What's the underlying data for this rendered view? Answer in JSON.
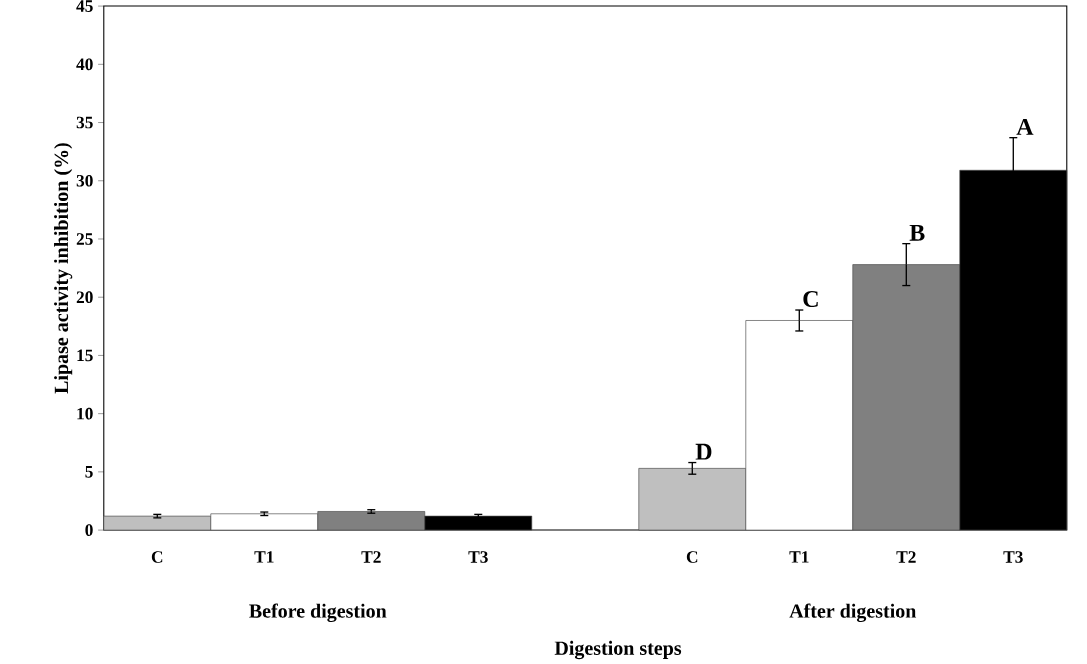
{
  "chart_data": {
    "type": "bar",
    "xlabel": "Digestion steps",
    "ylabel": "Lipase activity inhibition (%)",
    "categories": [
      "C",
      "T1",
      "T2",
      "T3",
      null,
      "C",
      "T1",
      "T2",
      "T3"
    ],
    "values": [
      1.2,
      1.4,
      1.6,
      1.2,
      null,
      5.3,
      18.0,
      22.8,
      30.9
    ],
    "errors": [
      0.15,
      0.15,
      0.15,
      0.15,
      null,
      0.5,
      0.9,
      1.8,
      2.8
    ],
    "colors": [
      "#bfbfbf",
      "#ffffff",
      "#808080",
      "#000000",
      null,
      "#bfbfbf",
      "#ffffff",
      "#808080",
      "#000000"
    ],
    "value_labels": [
      null,
      null,
      null,
      null,
      null,
      "D",
      "C",
      "B",
      "A"
    ],
    "annotations": [
      "Before digestion",
      "After digestion"
    ],
    "ylim": [
      0,
      45
    ],
    "yticks": [
      0,
      5,
      10,
      15,
      20,
      25,
      30,
      35,
      40,
      45
    ]
  }
}
